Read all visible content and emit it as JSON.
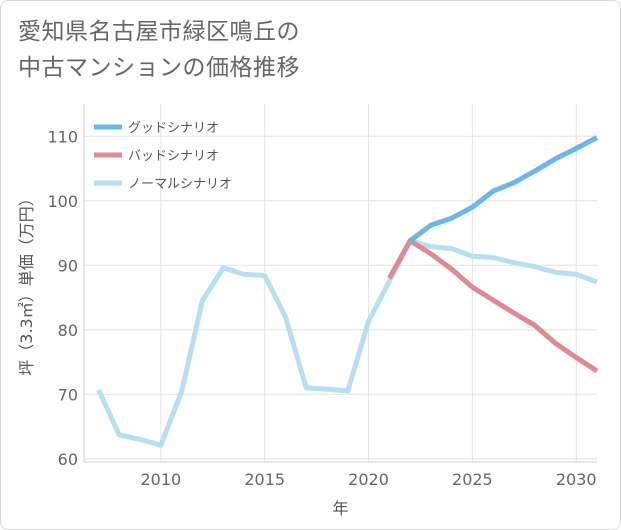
{
  "title_line1": "愛知県名古屋市緑区鳴丘の",
  "title_line2": "中古マンションの価格推移",
  "chart_data": {
    "type": "line",
    "xlabel": "年",
    "ylabel": "坪（3.3㎡）単価（万円）",
    "xlim": [
      2006.3,
      2031
    ],
    "ylim": [
      59.5,
      115
    ],
    "x_ticks": [
      2010,
      2015,
      2020,
      2025,
      2030
    ],
    "y_ticks": [
      60,
      70,
      80,
      90,
      100,
      110
    ],
    "grid": true,
    "legend_position": "top-left",
    "series": [
      {
        "name": "グッドシナリオ",
        "color": "#6bb6ea",
        "x": [
          2022,
          2023,
          2024,
          2025,
          2026,
          2027,
          2028,
          2029,
          2030,
          2031
        ],
        "values": [
          93.8,
          96.2,
          97.3,
          99.0,
          101.5,
          102.8,
          104.6,
          106.5,
          108.1,
          109.8
        ]
      },
      {
        "name": "バッドシナリオ",
        "color": "#dd8a92",
        "x": [
          2021,
          2022,
          2023,
          2024,
          2025,
          2026,
          2027,
          2028,
          2029,
          2030,
          2031
        ],
        "values": [
          88.0,
          93.8,
          91.8,
          89.4,
          86.6,
          84.6,
          82.6,
          80.7,
          77.9,
          75.7,
          73.6
        ]
      },
      {
        "name": "ノーマルシナリオ",
        "color": "#b8dff0",
        "x": [
          2007,
          2008,
          2009,
          2010,
          2011,
          2012,
          2013,
          2014,
          2015,
          2016,
          2017,
          2018,
          2019,
          2020,
          2021,
          2022,
          2023,
          2024,
          2025,
          2026,
          2027,
          2028,
          2029,
          2030,
          2031
        ],
        "values": [
          70.7,
          63.7,
          63.0,
          62.1,
          70.4,
          84.5,
          89.6,
          88.6,
          88.4,
          82.0,
          71.0,
          70.8,
          70.5,
          81.3,
          87.5,
          93.8,
          92.9,
          92.6,
          91.4,
          91.2,
          90.4,
          89.8,
          88.9,
          88.6,
          87.4
        ]
      }
    ]
  }
}
